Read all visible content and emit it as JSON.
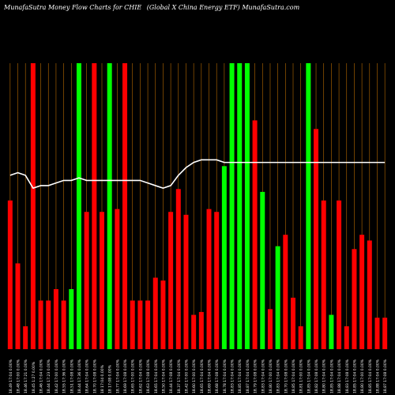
{
  "header": {
    "left": "MunafaSutra  Money Flow  Charts for CHIE",
    "right": "(Global X China  Energy ETF)  MunafaSutra.com"
  },
  "chart_data": {
    "type": "bar",
    "title": "MunafaSutra  Money Flow  Charts for CHIE",
    "subtitle": "(Global X China  Energy ETF)  MunafaSutra.com",
    "colors": {
      "up": "#00ff00",
      "down": "#ff0000",
      "grid": "#b86b00",
      "line": "#ffffff",
      "background": "#000000"
    },
    "ylim": [
      0,
      100
    ],
    "grid": true,
    "categories": [
      "18.49 17:04 0.00%",
      "18.48 17:00 0.00%",
      "18.46 17:21 0.00%",
      "18.45 1:27 0.00%",
      "18.46 17:04 0.00%",
      "18.44 17:23 0.00%",
      "18.42 17:00 0.00%",
      "18.55 17:36 0.00%",
      "18.51 17:08 0.00%",
      "18.44 17:36 0.00%",
      "18.64 17:04 0.00%",
      "18.70 17:08 0.00%",
      "18 17:04 0.00%",
      "18 17:08 0.00%",
      "18.77 17:04 0.00%",
      "18.69 17:08 0.00%",
      "18.65 17:00 0.00%",
      "18.62 17:04 0.00%",
      "18.63 17:08 0.00%",
      "18.65 17:04 0.00%",
      "18.50 17:04 0.00%",
      "18.44 17:08 0.00%",
      "18.37 17:04 0.00%",
      "18.42 17:00 0.00%",
      "18.60 17:00 0.00%",
      "18.65 17:04 0.00%",
      "18.69 17:04 0.00%",
      "18.68 17:08 0.00%",
      "18.78 17:04 0.00%",
      "18.83 17:04 0.00%",
      "18.85 17:04 0.00%",
      "18.87 17:04 0.00%",
      "18.79 17:08 0.00%",
      "18.83 17:04 0.00%",
      "18.80 17:00 0.00%",
      "18.83 17:04 0.00%",
      "18.70 17:08 0.00%",
      "18.85 17:04 0.00%",
      "18.81 17:00 0.00%",
      "18.85 17:04 0.00%",
      "18.82 17:08 0.00%",
      "18.80 17:04 0.00%",
      "18.85 17:04 0.00%",
      "18.88 17:04 0.00%",
      "18.83 17:08 0.00%",
      "18.85 17:04 0.00%",
      "18.80 17:00 0.00%",
      "18.85 17:04 0.00%",
      "18.88 17:04 0.00%",
      "18.87 17:08 0.00%"
    ],
    "volume_direction": [
      "down",
      "down",
      "down",
      "down",
      "down",
      "down",
      "down",
      "down",
      "up",
      "up",
      "down",
      "down",
      "down",
      "up",
      "down",
      "down",
      "down",
      "down",
      "down",
      "down",
      "down",
      "down",
      "down",
      "down",
      "down",
      "down",
      "down",
      "down",
      "up",
      "up",
      "up",
      "up",
      "down",
      "up",
      "down",
      "up",
      "down",
      "down",
      "down",
      "up",
      "down",
      "down",
      "up",
      "down",
      "down",
      "down",
      "down",
      "down",
      "down",
      "down"
    ],
    "money_flow": [
      52,
      30,
      8,
      100,
      17,
      17,
      21,
      17,
      21,
      100,
      48,
      100,
      48,
      100,
      49,
      100,
      17,
      17,
      17,
      25,
      24,
      48,
      56,
      47,
      12,
      13,
      49,
      48,
      64,
      100,
      100,
      100,
      80,
      55,
      14,
      36,
      40,
      18,
      8,
      100,
      77,
      52,
      12,
      52,
      8,
      35,
      40,
      38,
      11,
      11
    ],
    "volume": [
      52,
      30,
      8,
      100,
      17,
      17,
      21,
      17,
      21,
      100,
      48,
      100,
      48,
      100,
      49,
      100,
      17,
      17,
      17,
      25,
      24,
      48,
      56,
      47,
      12,
      13,
      49,
      48,
      64,
      100,
      100,
      100,
      80,
      55,
      14,
      36,
      40,
      18,
      8,
      100,
      77,
      52,
      12,
      52,
      8,
      35,
      40,
      38,
      11,
      11
    ],
    "price_line": [
      62,
      63,
      62,
      57,
      58,
      58,
      59,
      60,
      60,
      61,
      60,
      60,
      60,
      60,
      60,
      60,
      60,
      60,
      59,
      58,
      57,
      58,
      62,
      65,
      67,
      68,
      68,
      68,
      67,
      67,
      67,
      67,
      67,
      67,
      67,
      67,
      67,
      67,
      67,
      67,
      67,
      67,
      67,
      67,
      67,
      67,
      67,
      67,
      67,
      67
    ]
  }
}
